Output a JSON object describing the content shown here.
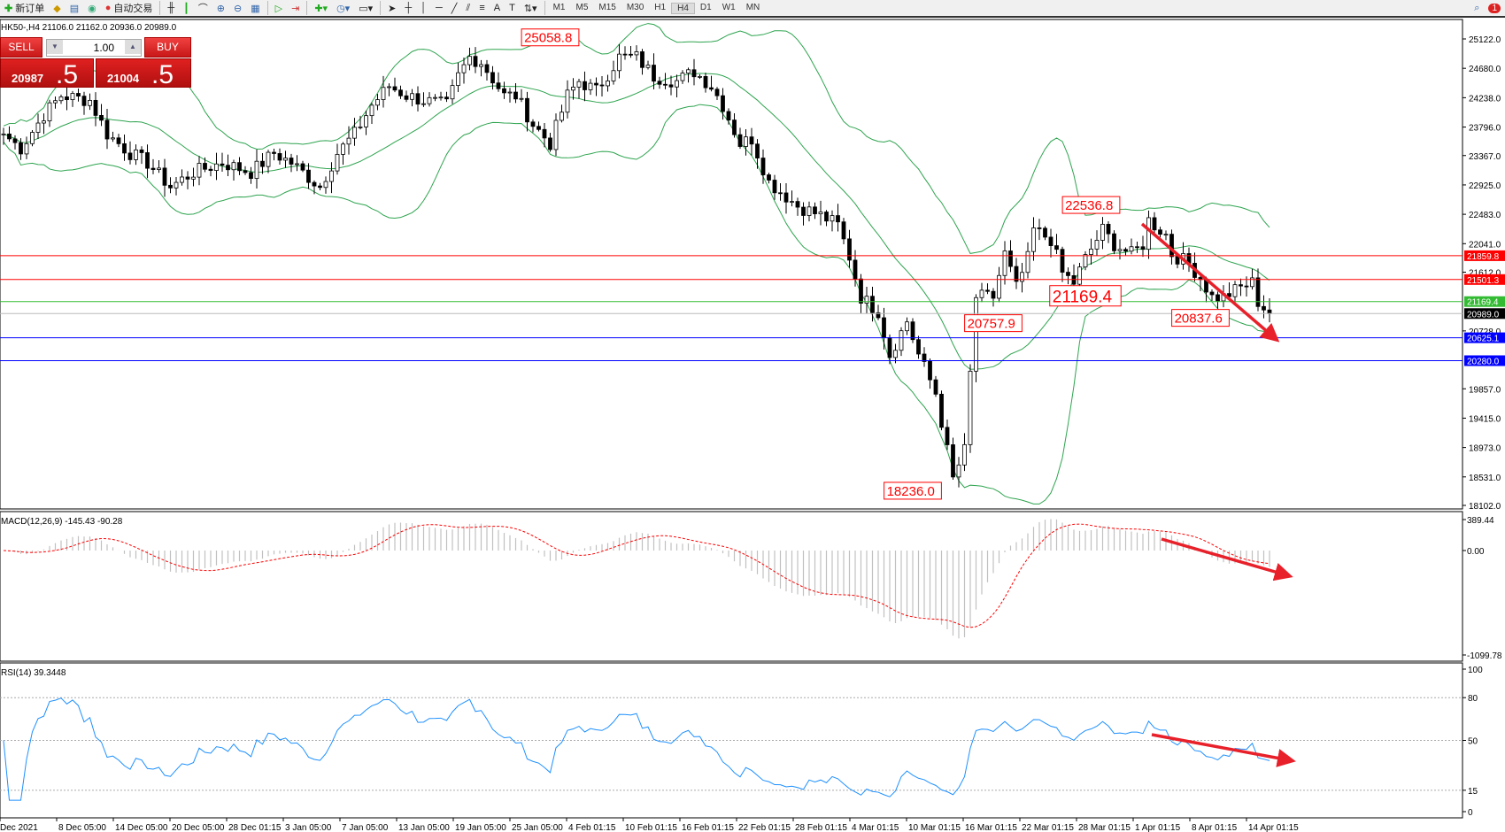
{
  "toolbar": {
    "new_order": "新订单",
    "auto_trading": "自动交易",
    "timeframes": [
      "M1",
      "M5",
      "M15",
      "M30",
      "H1",
      "H4",
      "D1",
      "W1",
      "MN"
    ],
    "active_timeframe": "H4",
    "notification_count": "1"
  },
  "symbol_info": "HK50-,H4  21106.0 21162.0 20936.0 20989.0",
  "trade_panel": {
    "sell_label": "SELL",
    "buy_label": "BUY",
    "lot": "1.00",
    "sell_price_small": "20987",
    "sell_price_large": ".5",
    "buy_price_small": "21004",
    "buy_price_large": ".5"
  },
  "chart_data": {
    "type": "candlestick",
    "symbol": "HK50-",
    "timeframe": "H4",
    "price_axis_ticks": [
      "25122.0",
      "24680.0",
      "24238.0",
      "23796.0",
      "23367.0",
      "22925.0",
      "22483.0",
      "22041.0",
      "21612.0",
      "20728.0",
      "19857.0",
      "19415.0",
      "18973.0",
      "18531.0",
      "18102.0"
    ],
    "ylim": [
      18102,
      25122
    ],
    "close_path_bar_price": [
      [
        0,
        23692
      ],
      [
        3,
        23476
      ],
      [
        7,
        23981
      ],
      [
        10,
        24270
      ],
      [
        15,
        24198
      ],
      [
        18,
        23692
      ],
      [
        22,
        23404
      ],
      [
        25,
        23259
      ],
      [
        29,
        22898
      ],
      [
        33,
        23115
      ],
      [
        38,
        23259
      ],
      [
        43,
        23115
      ],
      [
        47,
        23404
      ],
      [
        50,
        23259
      ],
      [
        55,
        22898
      ],
      [
        58,
        23404
      ],
      [
        61,
        23692
      ],
      [
        64,
        24126
      ],
      [
        67,
        24414
      ],
      [
        70,
        24270
      ],
      [
        73,
        24198
      ],
      [
        77,
        24126
      ],
      [
        79,
        24559
      ],
      [
        81,
        24848
      ],
      [
        83,
        24775
      ],
      [
        87,
        24270
      ],
      [
        89,
        24270
      ],
      [
        92,
        23837
      ],
      [
        95,
        23548
      ],
      [
        98,
        24270
      ],
      [
        100,
        24487
      ],
      [
        103,
        24342
      ],
      [
        107,
        24848
      ],
      [
        110,
        24848
      ],
      [
        113,
        24559
      ],
      [
        117,
        24487
      ],
      [
        120,
        24631
      ],
      [
        123,
        24414
      ],
      [
        125,
        24126
      ],
      [
        128,
        23548
      ],
      [
        130,
        23620
      ],
      [
        133,
        22970
      ],
      [
        135,
        22826
      ],
      [
        138,
        22609
      ],
      [
        142,
        22465
      ],
      [
        145,
        22321
      ],
      [
        147,
        21844
      ],
      [
        149,
        21238
      ],
      [
        152,
        21021
      ],
      [
        154,
        20371
      ],
      [
        157,
        20877
      ],
      [
        159,
        20371
      ],
      [
        162,
        19793
      ],
      [
        164,
        18927
      ],
      [
        165,
        18494
      ],
      [
        167,
        18927
      ],
      [
        168,
        20083
      ],
      [
        169,
        21238
      ],
      [
        172,
        21238
      ],
      [
        174,
        21887
      ],
      [
        176,
        21382
      ],
      [
        178,
        21815
      ],
      [
        179,
        22249
      ],
      [
        182,
        22104
      ],
      [
        184,
        21599
      ],
      [
        186,
        21454
      ],
      [
        188,
        21815
      ],
      [
        191,
        22249
      ],
      [
        193,
        22032
      ],
      [
        196,
        21887
      ],
      [
        198,
        22032
      ],
      [
        199,
        22393
      ],
      [
        202,
        22177
      ],
      [
        203,
        21887
      ],
      [
        206,
        21743
      ],
      [
        208,
        21526
      ],
      [
        210,
        21238
      ],
      [
        212,
        21238
      ],
      [
        215,
        21382
      ],
      [
        217,
        21454
      ],
      [
        218,
        21166
      ],
      [
        220,
        20989
      ]
    ],
    "annotations": [
      {
        "text": "25058.8",
        "price": 25058.8,
        "bar": 95
      },
      {
        "text": "18236.0",
        "price": 18236.0,
        "bar": 158
      },
      {
        "text": "20757.9",
        "price": 20757.9,
        "bar": 172
      },
      {
        "text": "21169.4",
        "price": 21169.4,
        "bar": 188,
        "large": true
      },
      {
        "text": "22536.8",
        "price": 22536.8,
        "bar": 189
      },
      {
        "text": "20837.6",
        "price": 20837.6,
        "bar": 208
      }
    ],
    "horizontal_lines": [
      {
        "price": 21859.8,
        "label": "21859.8",
        "color": "#ff0000"
      },
      {
        "price": 21501.3,
        "label": "21501.3",
        "color": "#ff0000"
      },
      {
        "price": 21169.4,
        "label": "21169.4",
        "color": "#33bb33"
      },
      {
        "price": 20989.0,
        "label": "20989.0",
        "color": "#000000",
        "line": "#bbbbbb"
      },
      {
        "price": 20625.1,
        "label": "20625.1",
        "color": "#0000ff"
      },
      {
        "price": 20280.0,
        "label": "20280.0",
        "color": "#0000ff"
      }
    ],
    "bollinger_color": "#2ea44f",
    "x_axis_ticks": [
      "Dec 2021",
      "8 Dec 05:00",
      "14 Dec 05:00",
      "20 Dec 05:00",
      "28 Dec 01:15",
      "3 Jan 05:00",
      "7 Jan 05:00",
      "13 Jan 05:00",
      "19 Jan 05:00",
      "25 Jan 05:00",
      "4 Feb 01:15",
      "10 Feb 01:15",
      "16 Feb 01:15",
      "22 Feb 01:15",
      "28 Feb 01:15",
      "4 Mar 01:15",
      "10 Mar 01:15",
      "16 Mar 01:15",
      "22 Mar 01:15",
      "28 Mar 01:15",
      "1 Apr 01:15",
      "8 Apr 01:15",
      "14 Apr 01:15"
    ],
    "macd": {
      "label": "MACD(12,26,9) -145.43 -90.28",
      "ticks": [
        "389.44",
        "0.00",
        "-1099.78"
      ],
      "ylim": [
        -1099.78,
        389.44
      ],
      "signal_color": "#ff0000",
      "hist_color": "#c0c0c0"
    },
    "rsi": {
      "label": "RSI(14) 39.3448",
      "ticks": [
        "100",
        "80",
        "50",
        "15",
        "0"
      ],
      "levels": [
        80,
        50,
        15
      ],
      "ylim": [
        0,
        100
      ],
      "color": "#1e90ff"
    },
    "arrow_color": "#e8202a"
  }
}
